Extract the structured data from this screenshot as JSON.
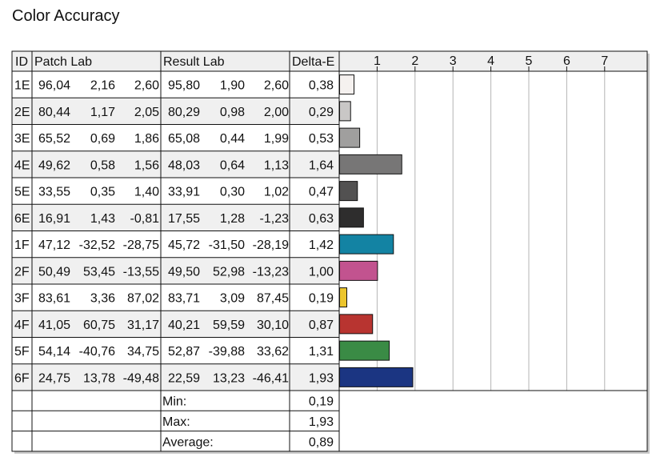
{
  "title": "Color Accuracy",
  "headers": {
    "id": "ID",
    "patch": "Patch Lab",
    "result": "Result Lab",
    "delta": "Delta-E"
  },
  "chart_data": {
    "type": "table",
    "title": "Color Accuracy",
    "xlim": [
      0,
      8
    ],
    "ticks": [
      "1",
      "2",
      "3",
      "4",
      "5",
      "6",
      "7"
    ],
    "grid": true,
    "rows": [
      {
        "id": "1E",
        "patch": [
          "96,04",
          "2,16",
          "2,60"
        ],
        "result": [
          "95,80",
          "1,90",
          "2,60"
        ],
        "delta": "0,38",
        "value": 0.38,
        "color": "#f5f1ef"
      },
      {
        "id": "2E",
        "patch": [
          "80,44",
          "1,17",
          "2,05"
        ],
        "result": [
          "80,29",
          "0,98",
          "2,00"
        ],
        "delta": "0,29",
        "value": 0.29,
        "color": "#c9c7c6"
      },
      {
        "id": "3E",
        "patch": [
          "65,52",
          "0,69",
          "1,86"
        ],
        "result": [
          "65,08",
          "0,44",
          "1,99"
        ],
        "delta": "0,53",
        "value": 0.53,
        "color": "#a09f9e"
      },
      {
        "id": "4E",
        "patch": [
          "49,62",
          "0,58",
          "1,56"
        ],
        "result": [
          "48,03",
          "0,64",
          "1,13"
        ],
        "delta": "1,64",
        "value": 1.64,
        "color": "#777676"
      },
      {
        "id": "5E",
        "patch": [
          "33,55",
          "0,35",
          "1,40"
        ],
        "result": [
          "33,91",
          "0,30",
          "1,02"
        ],
        "delta": "0,47",
        "value": 0.47,
        "color": "#525151"
      },
      {
        "id": "6E",
        "patch": [
          "16,91",
          "1,43",
          "-0,81"
        ],
        "result": [
          "17,55",
          "1,28",
          "-1,23"
        ],
        "delta": "0,63",
        "value": 0.63,
        "color": "#2e2d2d"
      },
      {
        "id": "1F",
        "patch": [
          "47,12",
          "-32,52",
          "-28,75"
        ],
        "result": [
          "45,72",
          "-31,50",
          "-28,19"
        ],
        "delta": "1,42",
        "value": 1.42,
        "color": "#1383a3"
      },
      {
        "id": "2F",
        "patch": [
          "50,49",
          "53,45",
          "-13,55"
        ],
        "result": [
          "49,50",
          "52,98",
          "-13,23"
        ],
        "delta": "1,00",
        "value": 1.0,
        "color": "#c2538f"
      },
      {
        "id": "3F",
        "patch": [
          "83,61",
          "3,36",
          "87,02"
        ],
        "result": [
          "83,71",
          "3,09",
          "87,45"
        ],
        "delta": "0,19",
        "value": 0.19,
        "color": "#ecc52c"
      },
      {
        "id": "4F",
        "patch": [
          "41,05",
          "60,75",
          "31,17"
        ],
        "result": [
          "40,21",
          "59,59",
          "30,10"
        ],
        "delta": "0,87",
        "value": 0.87,
        "color": "#b83430"
      },
      {
        "id": "5F",
        "patch": [
          "54,14",
          "-40,76",
          "34,75"
        ],
        "result": [
          "52,87",
          "-39,88",
          "33,62"
        ],
        "delta": "1,31",
        "value": 1.31,
        "color": "#3a8b45"
      },
      {
        "id": "6F",
        "patch": [
          "24,75",
          "13,78",
          "-49,48"
        ],
        "result": [
          "22,59",
          "13,23",
          "-46,41"
        ],
        "delta": "1,93",
        "value": 1.93,
        "color": "#1b3582"
      }
    ],
    "summary": [
      {
        "label": "Min:",
        "value": "0,19"
      },
      {
        "label": "Max:",
        "value": "1,93"
      },
      {
        "label": "Average:",
        "value": "0,89"
      }
    ]
  }
}
